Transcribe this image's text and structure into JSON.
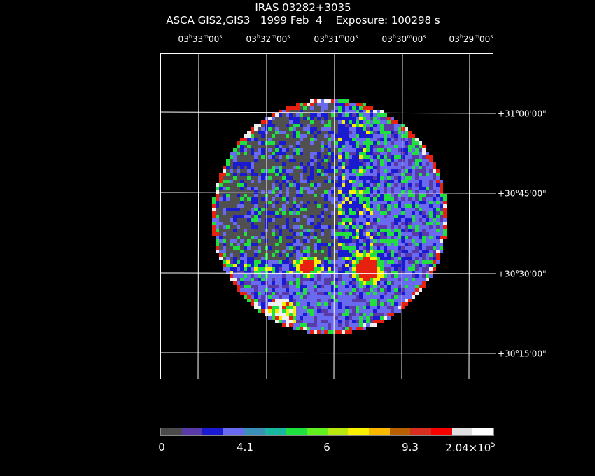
{
  "title": {
    "target": "IRAS 03282+3035",
    "instrument": "ASCA GIS2,GIS3",
    "date": "1999 Feb  4",
    "exposure": "Exposure: 100298 s"
  },
  "ra_labels": [
    {
      "h": "03",
      "m": "33",
      "s": "00"
    },
    {
      "h": "03",
      "m": "32",
      "s": "00"
    },
    {
      "h": "03",
      "m": "31",
      "s": "00"
    },
    {
      "h": "03",
      "m": "30",
      "s": "00"
    },
    {
      "h": "03",
      "m": "29",
      "s": "00"
    }
  ],
  "dec_labels": [
    {
      "sign": "+",
      "d": "31",
      "m": "00",
      "s": "00"
    },
    {
      "sign": "+",
      "d": "30",
      "m": "45",
      "s": "00"
    },
    {
      "sign": "+",
      "d": "30",
      "m": "30",
      "s": "00"
    },
    {
      "sign": "+",
      "d": "30",
      "m": "15",
      "s": "00"
    }
  ],
  "colorbar": {
    "colors": [
      "#4a4a4a",
      "#5a3aa8",
      "#1a1ad0",
      "#6a6af0",
      "#3a90b8",
      "#18b8a0",
      "#20e040",
      "#60f020",
      "#b8e810",
      "#f8f000",
      "#f8b800",
      "#b86000",
      "#d83020",
      "#f80000",
      "#e0e0e0",
      "#ffffff"
    ],
    "ticks": [
      "0",
      "4.1",
      "6",
      "9.3"
    ],
    "max_base": "2.04×10",
    "max_exp": "5"
  },
  "image": {
    "palette": {
      "gray": "#505050",
      "purple": "#5a3aa8",
      "blue": "#1a1ad0",
      "lightblue": "#6a6af0",
      "green": "#20e040",
      "yellow": "#f8f000",
      "red": "#e82010",
      "white": "#f0f0f0"
    },
    "bright_sources": 2
  }
}
